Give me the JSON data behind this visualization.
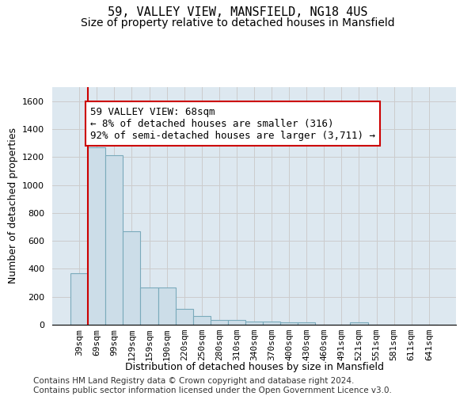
{
  "title": "59, VALLEY VIEW, MANSFIELD, NG18 4US",
  "subtitle": "Size of property relative to detached houses in Mansfield",
  "xlabel": "Distribution of detached houses by size in Mansfield",
  "ylabel": "Number of detached properties",
  "categories": [
    "39sqm",
    "69sqm",
    "99sqm",
    "129sqm",
    "159sqm",
    "190sqm",
    "220sqm",
    "250sqm",
    "280sqm",
    "310sqm",
    "340sqm",
    "370sqm",
    "400sqm",
    "430sqm",
    "460sqm",
    "491sqm",
    "521sqm",
    "551sqm",
    "581sqm",
    "611sqm",
    "641sqm"
  ],
  "values": [
    370,
    1270,
    1215,
    670,
    265,
    265,
    115,
    65,
    35,
    35,
    20,
    20,
    18,
    18,
    0,
    0,
    18,
    0,
    0,
    0,
    0
  ],
  "bar_color": "#ccdde8",
  "bar_edge_color": "#7aaabb",
  "annotation_text": "59 VALLEY VIEW: 68sqm\n← 8% of detached houses are smaller (316)\n92% of semi-detached houses are larger (3,711) →",
  "annotation_box_color": "#ffffff",
  "annotation_box_edge_color": "#cc0000",
  "vline_color": "#cc0000",
  "ylim": [
    0,
    1700
  ],
  "yticks": [
    0,
    200,
    400,
    600,
    800,
    1000,
    1200,
    1400,
    1600
  ],
  "grid_color": "#cccccc",
  "bg_color": "#dde8f0",
  "footer": "Contains HM Land Registry data © Crown copyright and database right 2024.\nContains public sector information licensed under the Open Government Licence v3.0.",
  "title_fontsize": 11,
  "subtitle_fontsize": 10,
  "axis_label_fontsize": 9,
  "tick_fontsize": 8,
  "annotation_fontsize": 9,
  "footer_fontsize": 7.5
}
